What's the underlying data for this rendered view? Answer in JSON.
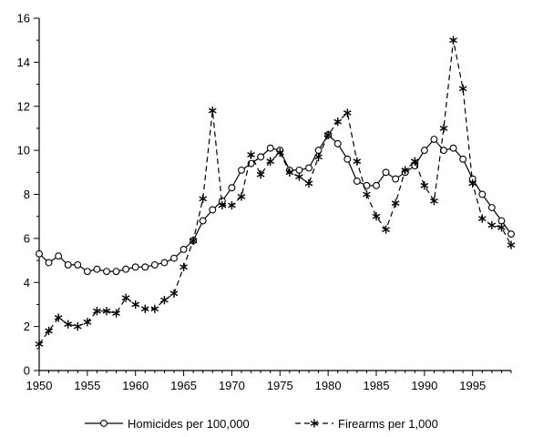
{
  "chart_data": {
    "type": "line",
    "title": "",
    "xlabel": "",
    "ylabel": "",
    "xlim": [
      1950,
      1999
    ],
    "ylim": [
      0,
      16
    ],
    "x_ticks": [
      1950,
      1955,
      1960,
      1965,
      1970,
      1975,
      1980,
      1985,
      1990,
      1995
    ],
    "y_ticks": [
      0,
      2,
      4,
      6,
      8,
      10,
      12,
      14,
      16
    ],
    "grid": false,
    "legend_position": "bottom",
    "x": [
      1950,
      1951,
      1952,
      1953,
      1954,
      1955,
      1956,
      1957,
      1958,
      1959,
      1960,
      1961,
      1962,
      1963,
      1964,
      1965,
      1966,
      1967,
      1968,
      1969,
      1970,
      1971,
      1972,
      1973,
      1974,
      1975,
      1976,
      1977,
      1978,
      1979,
      1980,
      1981,
      1982,
      1983,
      1984,
      1985,
      1986,
      1987,
      1988,
      1989,
      1990,
      1991,
      1992,
      1993,
      1994,
      1995,
      1996,
      1997,
      1998,
      1999
    ],
    "series": [
      {
        "name": "Homicides per 100,000",
        "marker": "circle",
        "line": "solid",
        "color": "#000000",
        "values": [
          5.3,
          4.9,
          5.2,
          4.8,
          4.8,
          4.5,
          4.6,
          4.5,
          4.5,
          4.6,
          4.7,
          4.7,
          4.8,
          4.9,
          5.1,
          5.5,
          5.9,
          6.8,
          7.3,
          7.7,
          8.3,
          9.1,
          9.4,
          9.7,
          10.1,
          10.0,
          9.1,
          9.1,
          9.2,
          10.0,
          10.7,
          10.3,
          9.6,
          8.6,
          8.4,
          8.4,
          9.0,
          8.7,
          9.0,
          9.3,
          10.0,
          10.5,
          10.0,
          10.1,
          9.6,
          8.7,
          8.0,
          7.4,
          6.8,
          6.2
        ]
      },
      {
        "name": "Firearms per 1,000",
        "marker": "asterisk",
        "line": "dashed",
        "color": "#000000",
        "values": [
          1.2,
          1.8,
          2.4,
          2.1,
          2.0,
          2.2,
          2.7,
          2.7,
          2.6,
          3.3,
          3.0,
          2.8,
          2.8,
          3.2,
          3.5,
          4.7,
          5.9,
          7.8,
          11.8,
          7.5,
          7.5,
          7.9,
          9.8,
          8.9,
          9.5,
          9.9,
          9.0,
          8.8,
          8.5,
          9.7,
          10.7,
          11.3,
          11.7,
          9.5,
          8.0,
          7.0,
          6.4,
          7.6,
          9.1,
          9.5,
          8.4,
          7.7,
          11.0,
          15.0,
          12.8,
          8.5,
          6.9,
          6.6,
          6.5,
          5.7
        ]
      }
    ]
  }
}
